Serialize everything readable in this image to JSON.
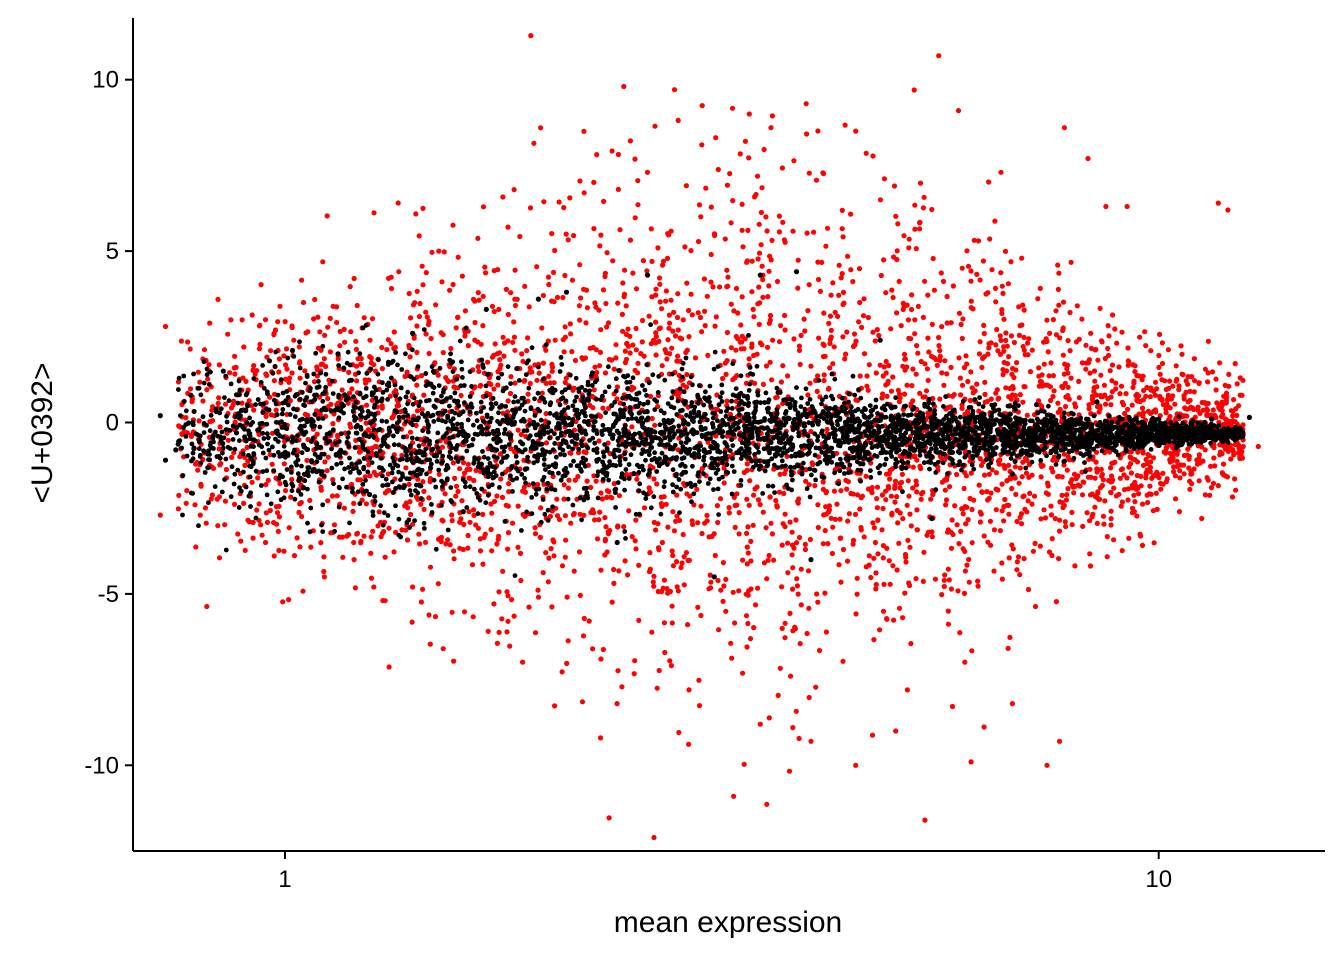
{
  "chart_data": {
    "type": "scatter",
    "title": "",
    "xlabel": "mean expression",
    "ylabel": "<U+0392>",
    "x_scale": "log10",
    "xlim": [
      0.67,
      15.5
    ],
    "ylim": [
      -12.5,
      11.8
    ],
    "x_ticks": [
      {
        "value": 1,
        "label": "1"
      },
      {
        "value": 10,
        "label": "10"
      }
    ],
    "y_ticks": [
      {
        "value": 10,
        "label": "10"
      },
      {
        "value": 5,
        "label": "5"
      },
      {
        "value": 0,
        "label": "0"
      },
      {
        "value": -5,
        "label": "-5"
      },
      {
        "value": -10,
        "label": "-10"
      }
    ],
    "grid": false,
    "legend": "none",
    "colors": {
      "significant": "#ff0000",
      "not_significant": "#000000"
    },
    "series": [
      {
        "color": "#ff0000",
        "points": [
          [
            0.72,
            -2.7
          ],
          [
            0.73,
            2.8
          ],
          [
            0.82,
            2.9
          ],
          [
            0.8,
            -2.7
          ],
          [
            0.95,
            3.0
          ],
          [
            1.05,
            3.5
          ],
          [
            1.2,
            4.2
          ],
          [
            1.35,
            4.4
          ],
          [
            1.5,
            5.0
          ],
          [
            1.8,
            5.7
          ],
          [
            2.2,
            6.7
          ],
          [
            2.6,
            7.3
          ],
          [
            3.0,
            8.1
          ],
          [
            3.4,
            9.0
          ],
          [
            3.6,
            8.6
          ],
          [
            3.95,
            9.3
          ],
          [
            4.5,
            8.5
          ],
          [
            5.25,
            9.7
          ],
          [
            5.6,
            10.7
          ],
          [
            5.9,
            9.1
          ],
          [
            6.6,
            7.3
          ],
          [
            7.8,
            8.6
          ],
          [
            8.3,
            7.7
          ],
          [
            8.7,
            6.3
          ],
          [
            9.2,
            6.3
          ],
          [
            11.7,
            6.4
          ],
          [
            12.0,
            6.2
          ],
          [
            12.4,
            1.3
          ],
          [
            13.0,
            -0.7
          ],
          [
            11.2,
            -2.8
          ],
          [
            5.4,
            -11.6
          ],
          [
            4.5,
            -10.0
          ],
          [
            6.1,
            -9.9
          ],
          [
            7.45,
            -10.0
          ],
          [
            7.7,
            -9.3
          ],
          [
            4.0,
            -9.3
          ],
          [
            3.5,
            -8.8
          ],
          [
            2.9,
            -7.8
          ],
          [
            2.3,
            -6.9
          ],
          [
            1.8,
            -5.8
          ],
          [
            1.4,
            -4.8
          ],
          [
            1.2,
            -4.0
          ],
          [
            0.95,
            -3.5
          ],
          [
            6.8,
            -8.2
          ],
          [
            5.0,
            -9.0
          ]
        ]
      },
      {
        "color": "#000000",
        "points": [
          [
            0.72,
            0.2
          ],
          [
            0.73,
            -1.1
          ],
          [
            0.75,
            -0.8
          ],
          [
            0.78,
            0.8
          ],
          [
            0.85,
            1.5
          ],
          [
            0.88,
            -0.3
          ],
          [
            0.96,
            1.8
          ],
          [
            1.02,
            2.1
          ],
          [
            1.05,
            -1.9
          ],
          [
            1.15,
            2.0
          ],
          [
            1.25,
            -2.1
          ],
          [
            1.4,
            2.6
          ],
          [
            1.7,
            3.3
          ],
          [
            1.95,
            3.6
          ],
          [
            2.1,
            3.8
          ],
          [
            2.6,
            4.3
          ],
          [
            3.5,
            4.3
          ],
          [
            3.85,
            4.4
          ],
          [
            4.0,
            -4.0
          ],
          [
            3.1,
            -4.5
          ],
          [
            2.4,
            -3.5
          ],
          [
            1.6,
            -2.6
          ],
          [
            4.8,
            2.4
          ],
          [
            5.5,
            -2.8
          ],
          [
            6.8,
            -1.5
          ],
          [
            8.5,
            0.6
          ],
          [
            10.0,
            0.1
          ],
          [
            11.5,
            0.1
          ],
          [
            12.7,
            0.15
          ],
          [
            10.5,
            -0.1
          ]
        ]
      }
    ]
  }
}
